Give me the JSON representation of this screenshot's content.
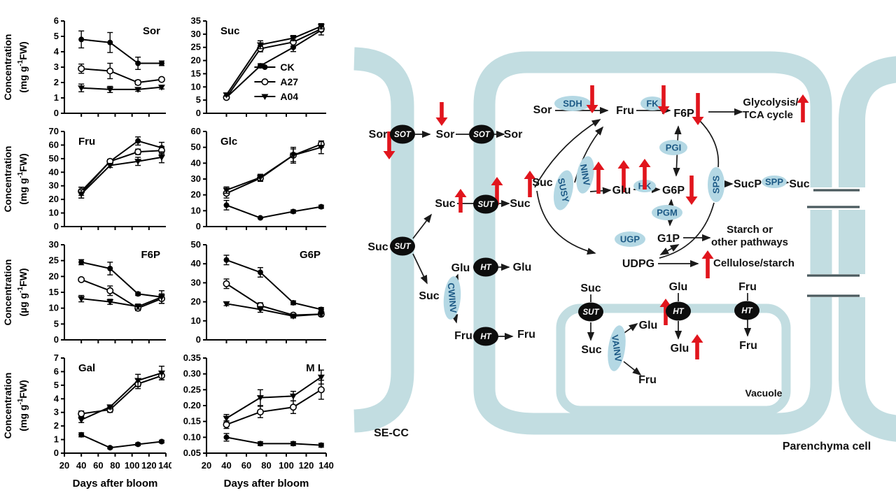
{
  "figure": {
    "type": "scientific-figure",
    "x_axis_title": "Days after bloom",
    "y_axis_title": "Concentration"
  },
  "chart_data": [
    {
      "id": "sor",
      "label": "Sor",
      "type": "line",
      "x": [
        40,
        74,
        107,
        135
      ],
      "xlim": [
        20,
        140
      ],
      "ylim": [
        0,
        6
      ],
      "ytick_step": 1,
      "decimals": 0,
      "ylabel": "Concentration",
      "yunit": "(mg g-1FW)",
      "xlabel": "",
      "label_pos": "tr",
      "show_x_labels": false,
      "legend": false,
      "series": [
        {
          "name": "CK",
          "marker": "circle-filled",
          "values": [
            4.8,
            4.6,
            3.25,
            3.25
          ],
          "errors": [
            0.55,
            0.65,
            0.4,
            0.15
          ]
        },
        {
          "name": "A27",
          "marker": "circle-open",
          "values": [
            2.9,
            2.75,
            2.0,
            2.2
          ],
          "errors": [
            0.3,
            0.5,
            0.15,
            0.12
          ]
        },
        {
          "name": "A04",
          "marker": "triangle-filled",
          "values": [
            1.65,
            1.55,
            1.55,
            1.7
          ],
          "errors": [
            0.25,
            0.2,
            0.12,
            0.12
          ]
        }
      ]
    },
    {
      "id": "suc",
      "label": "Suc",
      "type": "line",
      "x": [
        40,
        74,
        107,
        135
      ],
      "xlim": [
        20,
        140
      ],
      "ylim": [
        0,
        35
      ],
      "ytick_step": 5,
      "decimals": 0,
      "ylabel": "",
      "yunit": "",
      "xlabel": "",
      "label_pos": "tl",
      "show_x_labels": false,
      "legend": true,
      "series": [
        {
          "name": "CK",
          "marker": "circle-filled",
          "values": [
            6,
            18,
            25,
            31.5
          ],
          "errors": [
            0.6,
            0.8,
            1.6,
            1.8
          ]
        },
        {
          "name": "A27",
          "marker": "circle-open",
          "values": [
            6,
            24.5,
            27,
            32
          ],
          "errors": [
            0.5,
            1.2,
            1.5,
            1.0
          ]
        },
        {
          "name": "A04",
          "marker": "triangle-filled",
          "values": [
            7,
            26,
            28.5,
            33
          ],
          "errors": [
            0.5,
            1.5,
            1.0,
            1.0
          ]
        }
      ]
    },
    {
      "id": "fru",
      "label": "Fru",
      "type": "line",
      "x": [
        40,
        74,
        107,
        135
      ],
      "xlim": [
        20,
        140
      ],
      "ylim": [
        0,
        70
      ],
      "ytick_step": 10,
      "decimals": 0,
      "ylabel": "Concentration",
      "yunit": "(mg g-1FW)",
      "xlabel": "",
      "label_pos": "tl",
      "show_x_labels": false,
      "legend": false,
      "series": [
        {
          "name": "CK",
          "marker": "circle-filled",
          "values": [
            25,
            48,
            63,
            58
          ],
          "errors": [
            4,
            1.5,
            3,
            4
          ]
        },
        {
          "name": "A27",
          "marker": "circle-open",
          "values": [
            26,
            48,
            55,
            56
          ],
          "errors": [
            3,
            1.5,
            2,
            3
          ]
        },
        {
          "name": "A04",
          "marker": "triangle-filled",
          "values": [
            24,
            45,
            48,
            51
          ],
          "errors": [
            3,
            1.5,
            3,
            4
          ]
        }
      ]
    },
    {
      "id": "glc",
      "label": "Glc",
      "type": "line",
      "x": [
        40,
        74,
        107,
        135
      ],
      "xlim": [
        20,
        140
      ],
      "ylim": [
        0,
        60
      ],
      "ytick_step": 10,
      "decimals": 0,
      "ylabel": "",
      "yunit": "",
      "xlabel": "",
      "label_pos": "tl",
      "show_x_labels": false,
      "legend": false,
      "series": [
        {
          "name": "CK",
          "marker": "circle-filled",
          "values": [
            13.5,
            5.5,
            9.5,
            12.5
          ],
          "errors": [
            3,
            0.5,
            1,
            1
          ]
        },
        {
          "name": "A27",
          "marker": "circle-open",
          "values": [
            21,
            30.5,
            45,
            52
          ],
          "errors": [
            3,
            2,
            5,
            2
          ]
        },
        {
          "name": "A04",
          "marker": "triangle-filled",
          "values": [
            23,
            31,
            45,
            50
          ],
          "errors": [
            2,
            2,
            4,
            4
          ]
        }
      ]
    },
    {
      "id": "f6p",
      "label": "F6P",
      "type": "line",
      "x": [
        40,
        74,
        107,
        135
      ],
      "xlim": [
        20,
        140
      ],
      "ylim": [
        0,
        30
      ],
      "ytick_step": 5,
      "decimals": 0,
      "ylabel": "Concentration",
      "yunit": "(µg g-1FW)",
      "xlabel": "",
      "label_pos": "tr",
      "show_x_labels": false,
      "legend": false,
      "series": [
        {
          "name": "CK",
          "marker": "circle-filled",
          "values": [
            24.5,
            22.5,
            14.5,
            13.5
          ],
          "errors": [
            0.8,
            2,
            0.5,
            0.6
          ]
        },
        {
          "name": "A27",
          "marker": "circle-open",
          "values": [
            19,
            15.5,
            10,
            13
          ],
          "errors": [
            0.5,
            1.5,
            0.8,
            1.5
          ]
        },
        {
          "name": "A04",
          "marker": "triangle-filled",
          "values": [
            13,
            12,
            10.5,
            13.5
          ],
          "errors": [
            1,
            0.8,
            0.8,
            2
          ]
        }
      ]
    },
    {
      "id": "g6p",
      "label": "G6P",
      "type": "line",
      "x": [
        40,
        74,
        107,
        135
      ],
      "xlim": [
        20,
        140
      ],
      "ylim": [
        0,
        50
      ],
      "ytick_step": 10,
      "decimals": 0,
      "ylabel": "",
      "yunit": "",
      "xlabel": "",
      "label_pos": "tr",
      "show_x_labels": false,
      "legend": false,
      "series": [
        {
          "name": "CK",
          "marker": "circle-filled",
          "values": [
            42,
            35.5,
            19.5,
            16
          ],
          "errors": [
            2.5,
            2.5,
            1,
            1
          ]
        },
        {
          "name": "A27",
          "marker": "circle-open",
          "values": [
            29.5,
            18,
            13,
            13.5
          ],
          "errors": [
            2.5,
            1.5,
            1,
            1
          ]
        },
        {
          "name": "A04",
          "marker": "triangle-filled",
          "values": [
            19,
            16,
            12.5,
            13.5
          ],
          "errors": [
            1,
            1.5,
            1,
            1
          ]
        }
      ]
    },
    {
      "id": "gal",
      "label": "Gal",
      "type": "line",
      "x": [
        40,
        74,
        107,
        135
      ],
      "xlim": [
        20,
        140
      ],
      "ylim": [
        0,
        7
      ],
      "ytick_step": 1,
      "decimals": 0,
      "ylabel": "Concentration",
      "yunit": "(mg g-1FW)",
      "xlabel": "Days after bloom",
      "label_pos": "tl",
      "show_x_labels": true,
      "legend": false,
      "series": [
        {
          "name": "CK",
          "marker": "circle-filled",
          "values": [
            1.35,
            0.4,
            0.65,
            0.85
          ],
          "errors": [
            0.15,
            0.08,
            0.1,
            0.1
          ]
        },
        {
          "name": "A27",
          "marker": "circle-open",
          "values": [
            2.9,
            3.2,
            5.1,
            5.7
          ],
          "errors": [
            0.2,
            0.2,
            0.35,
            0.3
          ]
        },
        {
          "name": "A04",
          "marker": "triangle-filled",
          "values": [
            2.45,
            3.4,
            5.35,
            5.9
          ],
          "errors": [
            0.2,
            0.15,
            0.45,
            0.5
          ]
        }
      ]
    },
    {
      "id": "mi",
      "label": "M I",
      "type": "line",
      "x": [
        40,
        74,
        107,
        135
      ],
      "xlim": [
        20,
        140
      ],
      "ylim": [
        0.05,
        0.35
      ],
      "ytick_step": 0.05,
      "decimals": 2,
      "ylabel": "",
      "yunit": "",
      "xlabel": "Days after bloom",
      "label_pos": "tr",
      "show_x_labels": true,
      "legend": false,
      "series": [
        {
          "name": "CK",
          "marker": "circle-filled",
          "values": [
            0.1,
            0.08,
            0.08,
            0.075
          ],
          "errors": [
            0.012,
            0.006,
            0.006,
            0.006
          ]
        },
        {
          "name": "A27",
          "marker": "circle-open",
          "values": [
            0.14,
            0.18,
            0.195,
            0.25
          ],
          "errors": [
            0.012,
            0.018,
            0.02,
            0.03
          ]
        },
        {
          "name": "A04",
          "marker": "triangle-filled",
          "values": [
            0.16,
            0.225,
            0.23,
            0.29
          ],
          "errors": [
            0.012,
            0.025,
            0.015,
            0.022
          ]
        }
      ]
    }
  ],
  "diagram": {
    "colors": {
      "membrane": "#c2dde1",
      "enzyme_fill": "#b4d8e4",
      "enzyme_text": "#1d5a86",
      "transporter_fill": "#0d0d0d",
      "transporter_text": "#ffffff",
      "red": "#e1151d",
      "line": "#1a1a1a",
      "plasmodesma": "#4a5a5e"
    },
    "transporters": [
      {
        "id": "sot-secc",
        "label": "SOT"
      },
      {
        "id": "sot-pm",
        "label": "SOT"
      },
      {
        "id": "sut-pm",
        "label": "SUT"
      },
      {
        "id": "sut-secc",
        "label": "SUT"
      },
      {
        "id": "ht-pm-glu",
        "label": "HT"
      },
      {
        "id": "ht-pm-fru",
        "label": "HT"
      },
      {
        "id": "sut-vacuole",
        "label": "SUT"
      },
      {
        "id": "ht-vacuole-glu",
        "label": "HT"
      },
      {
        "id": "ht-vacuole-fru",
        "label": "HT"
      }
    ],
    "enzymes": [
      {
        "id": "sdh",
        "label": "SDH"
      },
      {
        "id": "fk",
        "label": "FK"
      },
      {
        "id": "pgi",
        "label": "PGI"
      },
      {
        "id": "hk",
        "label": "HK"
      },
      {
        "id": "pgm",
        "label": "PGM"
      },
      {
        "id": "ugp",
        "label": "UGP"
      },
      {
        "id": "sps",
        "label": "SPS"
      },
      {
        "id": "spp",
        "label": "SPP"
      },
      {
        "id": "susy",
        "label": "SUSY"
      },
      {
        "id": "ninv",
        "label": "NINV"
      },
      {
        "id": "cwinv",
        "label": "CWINV"
      },
      {
        "id": "vainv",
        "label": "VAINV"
      }
    ],
    "metabolites": [
      {
        "id": "sor-secc",
        "text": "Sor"
      },
      {
        "id": "sor-apo",
        "text": "Sor"
      },
      {
        "id": "sor-cyt",
        "text": "Sor"
      },
      {
        "id": "sor-sdh",
        "text": "Sor"
      },
      {
        "id": "fru-sdh",
        "text": "Fru"
      },
      {
        "id": "f6p",
        "text": "F6P"
      },
      {
        "id": "suc-secc",
        "text": "Suc"
      },
      {
        "id": "suc-apo-mid",
        "text": "Suc"
      },
      {
        "id": "suc-cyt-sut",
        "text": "Suc"
      },
      {
        "id": "suc-cyt",
        "text": "Suc"
      },
      {
        "id": "suc-apo-low",
        "text": "Suc"
      },
      {
        "id": "glu-apo",
        "text": "Glu"
      },
      {
        "id": "glu-cyt",
        "text": "Glu"
      },
      {
        "id": "fru-apo",
        "text": "Fru"
      },
      {
        "id": "fru-cyt",
        "text": "Fru"
      },
      {
        "id": "glu-hk",
        "text": "Glu"
      },
      {
        "id": "g6p",
        "text": "G6P"
      },
      {
        "id": "g1p",
        "text": "G1P"
      },
      {
        "id": "udpg",
        "text": "UDPG"
      },
      {
        "id": "sucp",
        "text": "SucP"
      },
      {
        "id": "suc-pd",
        "text": "Suc"
      },
      {
        "id": "suc-vac-top",
        "text": "Suc"
      },
      {
        "id": "suc-vac-in",
        "text": "Suc"
      },
      {
        "id": "glu-vac-top",
        "text": "Glu"
      },
      {
        "id": "glu-vac-in",
        "text": "Glu"
      },
      {
        "id": "fru-vac-top",
        "text": "Fru"
      },
      {
        "id": "fru-vac-in",
        "text": "Fru"
      },
      {
        "id": "glu-vainv",
        "text": "Glu"
      },
      {
        "id": "fru-vainv",
        "text": "Fru"
      }
    ],
    "pathway_labels": [
      {
        "id": "glycolysis",
        "text": "Glycolysis/"
      },
      {
        "id": "tca",
        "text": "TCA cycle"
      },
      {
        "id": "starch1",
        "text": "Starch or"
      },
      {
        "id": "starch2",
        "text": "other pathways"
      },
      {
        "id": "cellulose",
        "text": "Cellulose/starch"
      }
    ],
    "region_labels": [
      {
        "id": "se-cc",
        "text": "SE-CC"
      },
      {
        "id": "vacuole",
        "text": "Vacuole"
      },
      {
        "id": "parenchyma",
        "text": "Parenchyma cell"
      }
    ],
    "red_arrows": [
      {
        "id": "ra-sor-secc",
        "dir": "down"
      },
      {
        "id": "ra-sor-apo",
        "dir": "down"
      },
      {
        "id": "ra-sdh",
        "dir": "down"
      },
      {
        "id": "ra-fk",
        "dir": "down"
      },
      {
        "id": "ra-f6p",
        "dir": "down"
      },
      {
        "id": "ra-glycolysis",
        "dir": "up"
      },
      {
        "id": "ra-suc-apo",
        "dir": "up"
      },
      {
        "id": "ra-sut-pm",
        "dir": "up"
      },
      {
        "id": "ra-suc-cyt",
        "dir": "up"
      },
      {
        "id": "ra-susy",
        "dir": "up"
      },
      {
        "id": "ra-glu",
        "dir": "up"
      },
      {
        "id": "ra-hk",
        "dir": "up"
      },
      {
        "id": "ra-g6p",
        "dir": "down"
      },
      {
        "id": "ra-udpg",
        "dir": "up"
      },
      {
        "id": "ra-ht-vacuole",
        "dir": "up"
      },
      {
        "id": "ra-glu-vacuole",
        "dir": "up"
      }
    ]
  }
}
